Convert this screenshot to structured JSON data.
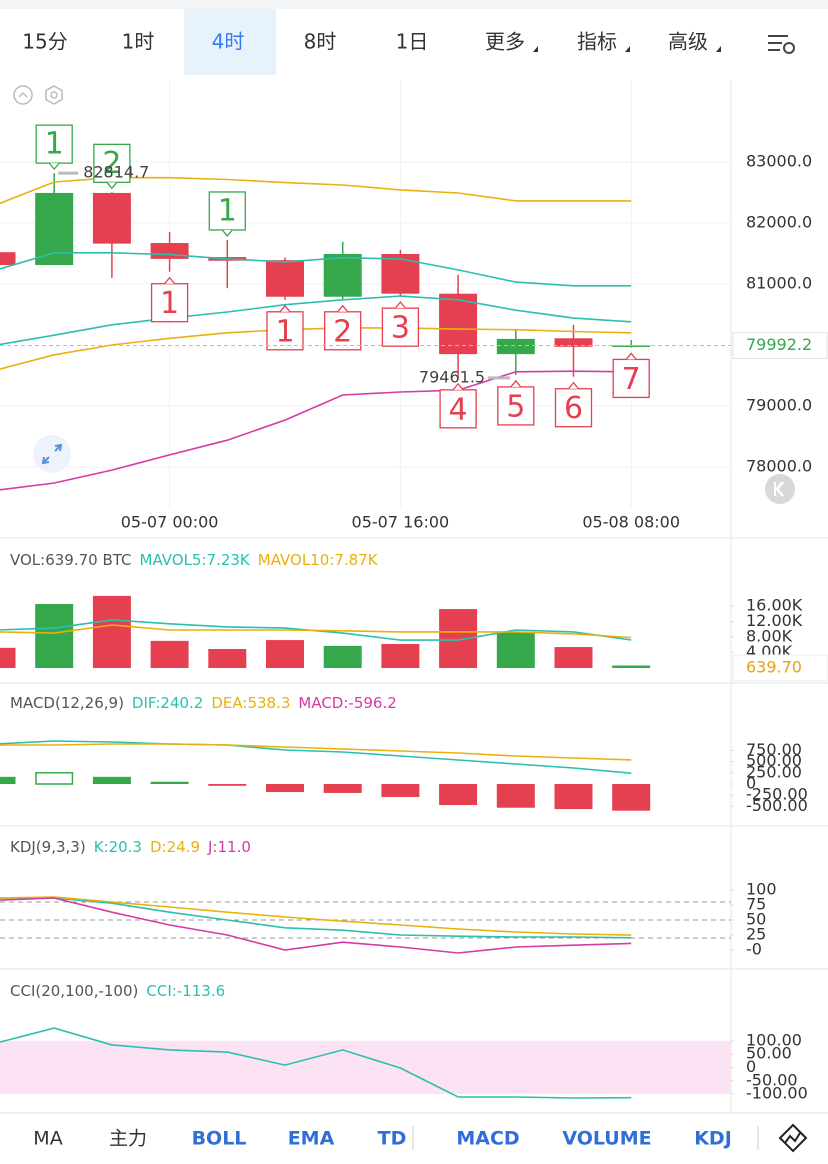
{
  "tabs": [
    "15分",
    "1时",
    "4时",
    "8时",
    "1日",
    "更多",
    "指标",
    "高级"
  ],
  "selected_tab_index": 2,
  "chart_data": [
    {
      "type": "candlestick",
      "categories": [
        null,
        null,
        null,
        "05-07 00:00",
        null,
        null,
        null,
        "05-07 16:00",
        null,
        null,
        null,
        "05-08 08:00"
      ],
      "open": [
        81520,
        81310,
        82490,
        81670,
        81440,
        81390,
        80790,
        81490,
        80840,
        79850,
        80110,
        79970
      ],
      "high": [
        81600,
        82814.7,
        82500,
        81850,
        81720,
        81430,
        81690,
        81560,
        81150,
        80250,
        80330,
        80080
      ],
      "low": [
        81310,
        81310,
        81100,
        81200,
        80930,
        80740,
        80740,
        80800,
        79461.5,
        79510,
        79480,
        79960
      ],
      "close": [
        81310,
        82490,
        81660,
        81410,
        81380,
        80790,
        81490,
        80840,
        79850,
        80100,
        79970,
        79992.2
      ],
      "up_color": "#35a84b",
      "down_color": "#e5404f",
      "td_up": [
        null,
        "1",
        "2",
        null,
        "1",
        null,
        null,
        null,
        null,
        null,
        null,
        null
      ],
      "td_down": [
        null,
        null,
        null,
        "1",
        null,
        "1",
        "2",
        "3",
        "4",
        "5",
        "6",
        "7"
      ],
      "lines": [
        {
          "color": "#e9b10e",
          "values": [
            82300,
            82670,
            82740,
            82740,
            82710,
            82660,
            82620,
            82540,
            82490,
            82360,
            82360,
            82360
          ]
        },
        {
          "color": "#2bbfae",
          "values": [
            81230,
            81510,
            81510,
            81480,
            81410,
            81360,
            81430,
            81410,
            81230,
            81030,
            80970,
            80970
          ]
        },
        {
          "color": "#2bbfae",
          "values": [
            80000,
            80160,
            80330,
            80440,
            80540,
            80660,
            80740,
            80800,
            80740,
            80570,
            80440,
            80380
          ]
        },
        {
          "color": "#e9b10e",
          "values": [
            79590,
            79840,
            80000,
            80110,
            80200,
            80250,
            80280,
            80280,
            80260,
            80250,
            80220,
            80200
          ]
        },
        {
          "color": "#d63aa5",
          "values": [
            77620,
            77740,
            77950,
            78200,
            78440,
            78770,
            79180,
            79230,
            79260,
            79560,
            79570,
            79560
          ]
        }
      ],
      "ylim": [
        77330,
        84340
      ],
      "yticks": [
        {
          "value": 83000,
          "label": "83000.0"
        },
        {
          "value": 82000,
          "label": "82000.0"
        },
        {
          "value": 81000,
          "label": "81000.0"
        },
        {
          "value": 79000,
          "label": "79000.0"
        },
        {
          "value": 78000,
          "label": "78000.0"
        }
      ],
      "grid": true
    },
    {
      "type": "bar",
      "header": [
        {
          "text": "VOL:639.70 BTC",
          "color": "#555555"
        },
        {
          "text": "MAVOL5:7.23K",
          "color": "#2bbfae"
        },
        {
          "text": "MAVOL10:7.87K",
          "color": "#e9b10e"
        }
      ],
      "values": [
        5200,
        16500,
        18600,
        7000,
        4900,
        7200,
        5700,
        6200,
        15200,
        9300,
        5400,
        639.7
      ],
      "value_labels": [
        null,
        null,
        null,
        null,
        null,
        null,
        null,
        null,
        null,
        null,
        null,
        "639.70"
      ],
      "label_color": "#e9a10e",
      "lines": [
        {
          "color": "#2bbfae",
          "values": [
            9800,
            10300,
            12400,
            11400,
            10600,
            10300,
            9000,
            7200,
            7200,
            9800,
            9300,
            7230
          ]
        },
        {
          "color": "#e9b10e",
          "values": [
            9300,
            9000,
            11100,
            9800,
            9800,
            9800,
            9600,
            9300,
            9300,
            9300,
            8800,
            7870
          ]
        }
      ],
      "ylim": [
        0,
        22700
      ],
      "yticks": [
        {
          "value": 16000,
          "label": "16.00K"
        },
        {
          "value": 12000,
          "label": "12.00K"
        },
        {
          "value": 8000,
          "label": "8.00K"
        },
        {
          "value": 4000,
          "label": "4.00K"
        }
      ]
    },
    {
      "type": "macd",
      "header": [
        {
          "text": "MACD(12,26,9)",
          "color": "#555555"
        },
        {
          "text": "DIF:240.2",
          "color": "#2bbfae"
        },
        {
          "text": "DEA:538.3",
          "color": "#e9b10e"
        },
        {
          "text": "MACD:-596.2",
          "color": "#d63aa5"
        }
      ],
      "values": [
        160,
        250,
        160,
        50,
        -40,
        -180,
        -200,
        -290,
        -470,
        -530,
        -560,
        -596.2
      ],
      "hollow": [
        false,
        true,
        false,
        false,
        false,
        false,
        false,
        false,
        false,
        false,
        false,
        false
      ],
      "lines": [
        {
          "color": "#2bbfae",
          "values": [
            893,
            960,
            938,
            893,
            870,
            759,
            714,
            625,
            536,
            446,
            357,
            240.2
          ]
        },
        {
          "color": "#e9b10e",
          "values": [
            870,
            870,
            893,
            893,
            870,
            826,
            781,
            737,
            692,
            625,
            580,
            538.3
          ]
        }
      ],
      "ylim": [
        -804,
        1429
      ],
      "yticks": [
        {
          "value": 750,
          "label": "750.00"
        },
        {
          "value": 500,
          "label": "500.00"
        },
        {
          "value": 250,
          "label": "250.00"
        },
        0,
        {
          "value": -250,
          "label": "-250.00"
        },
        {
          "value": -500,
          "label": "-500.00"
        }
      ]
    },
    {
      "type": "line",
      "header": [
        {
          "text": "KDJ(9,3,3)",
          "color": "#555555"
        },
        {
          "text": "K:20.3",
          "color": "#2bbfae"
        },
        {
          "text": "D:24.9",
          "color": "#e9b10e"
        },
        {
          "text": "J:11.0",
          "color": "#d63aa5"
        }
      ],
      "ref_lines": [
        80,
        50,
        20
      ],
      "lines": [
        {
          "color": "#2bbfae",
          "values": [
            86.7,
            86.7,
            78,
            63,
            50,
            37,
            33,
            25,
            23,
            21.7,
            21.7,
            20.3
          ]
        },
        {
          "color": "#e9b10e",
          "values": [
            86.7,
            88.3,
            80,
            71.7,
            63,
            55,
            48,
            41.7,
            35,
            30,
            26.7,
            24.9
          ]
        },
        {
          "color": "#d63aa5",
          "values": [
            83,
            86.7,
            63,
            41.7,
            25,
            0,
            13,
            5,
            -5,
            5,
            8,
            11.0
          ]
        }
      ],
      "ylim": [
        -25,
        146.7
      ],
      "yticks": [
        100,
        75,
        50,
        25,
        {
          "value": 0,
          "label": "-0"
        }
      ]
    },
    {
      "type": "line",
      "header": [
        {
          "text": "CCI(20,100,-100)",
          "color": "#555555"
        },
        {
          "text": "CCI:-113.6",
          "color": "#2bbfae"
        }
      ],
      "band": [
        -100,
        100
      ],
      "band_color": "#fbe3f4",
      "lines": [
        {
          "color": "#2bbfae",
          "values": [
            92,
            148,
            85,
            66,
            58,
            9,
            66,
            -2,
            -111,
            -111,
            -115,
            -113.6
          ]
        }
      ],
      "ylim": [
        -160,
        235
      ],
      "yticks": [
        {
          "value": 100,
          "label": "100.00"
        },
        {
          "value": 50,
          "label": "50.00"
        },
        0,
        {
          "value": -50,
          "label": "-50.00"
        },
        {
          "value": -100,
          "label": "-100.00"
        }
      ]
    }
  ],
  "toolbar": [
    "MA",
    "主力",
    "BOLL",
    "EMA",
    "TD",
    "MACD",
    "VOLUME",
    "KDJ"
  ],
  "toolbar_active_from": 2
}
